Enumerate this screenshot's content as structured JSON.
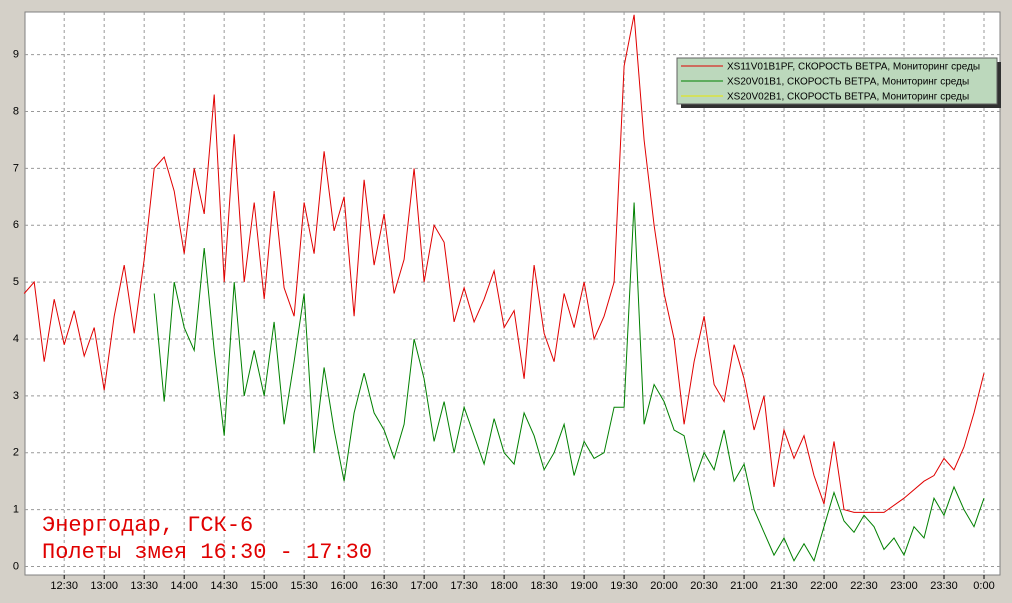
{
  "chart_data": {
    "type": "line",
    "annotations": [
      "Энергодар, ГСК-6",
      "Полеты змея 16:30 - 17:30"
    ],
    "xlim": [
      12.01,
      24.2
    ],
    "ylim": [
      -0.15,
      9.75
    ],
    "yticks": [
      0,
      1,
      2,
      3,
      4,
      5,
      6,
      7,
      8,
      9
    ],
    "xticks": [
      {
        "value": 12.5,
        "label": "12:30"
      },
      {
        "value": 13,
        "label": "13:00"
      },
      {
        "value": 13.5,
        "label": "13:30"
      },
      {
        "value": 14,
        "label": "14:00"
      },
      {
        "value": 14.5,
        "label": "14:30"
      },
      {
        "value": 15,
        "label": "15:00"
      },
      {
        "value": 15.5,
        "label": "15:30"
      },
      {
        "value": 16,
        "label": "16:00"
      },
      {
        "value": 16.5,
        "label": "16:30"
      },
      {
        "value": 17,
        "label": "17:00"
      },
      {
        "value": 17.5,
        "label": "17:30"
      },
      {
        "value": 18,
        "label": "18:00"
      },
      {
        "value": 18.5,
        "label": "18:30"
      },
      {
        "value": 19,
        "label": "19:00"
      },
      {
        "value": 19.5,
        "label": "19:30"
      },
      {
        "value": 20,
        "label": "20:00"
      },
      {
        "value": 20.5,
        "label": "20:30"
      },
      {
        "value": 21,
        "label": "21:00"
      },
      {
        "value": 21.5,
        "label": "21:30"
      },
      {
        "value": 22,
        "label": "22:00"
      },
      {
        "value": 22.5,
        "label": "22:30"
      },
      {
        "value": 23,
        "label": "23:00"
      },
      {
        "value": 23.5,
        "label": "23:30"
      },
      {
        "value": 24,
        "label": "0:00"
      }
    ],
    "grid": true,
    "legend": "upper right",
    "series": [
      {
        "name": "XS11V01B1PF, СКОРОСТЬ ВЕТРА, Мониторинг среды",
        "color": "#e00000",
        "x": [
          12,
          12.125,
          12.25,
          12.375,
          12.5,
          12.625,
          12.75,
          12.875,
          13,
          13.125,
          13.25,
          13.375,
          13.5,
          13.625,
          13.75,
          13.875,
          14,
          14.125,
          14.25,
          14.375,
          14.5,
          14.625,
          14.75,
          14.875,
          15,
          15.125,
          15.25,
          15.375,
          15.5,
          15.625,
          15.75,
          15.875,
          16,
          16.125,
          16.25,
          16.375,
          16.5,
          16.625,
          16.75,
          16.875,
          17,
          17.125,
          17.25,
          17.375,
          17.5,
          17.625,
          17.75,
          17.875,
          18,
          18.125,
          18.25,
          18.375,
          18.5,
          18.625,
          18.75,
          18.875,
          19,
          19.125,
          19.25,
          19.375,
          19.5,
          19.625,
          19.75,
          19.875,
          20,
          20.125,
          20.25,
          20.375,
          20.5,
          20.625,
          20.75,
          20.875,
          21,
          21.125,
          21.25,
          21.375,
          21.5,
          21.625,
          21.75,
          21.875,
          22,
          22.125,
          22.25,
          22.375,
          22.5,
          22.625,
          22.75,
          23,
          23.25,
          23.375,
          23.5,
          23.625,
          23.75,
          23.875,
          24
        ],
        "values": [
          4.8,
          5.0,
          3.6,
          4.7,
          3.9,
          4.5,
          3.7,
          4.2,
          3.1,
          4.4,
          5.3,
          4.1,
          5.4,
          7.0,
          7.2,
          6.6,
          5.5,
          7.0,
          6.2,
          8.3,
          5.0,
          7.6,
          5.0,
          6.4,
          4.7,
          6.6,
          4.9,
          4.4,
          6.4,
          5.5,
          7.3,
          5.9,
          6.5,
          4.4,
          6.8,
          5.3,
          6.2,
          4.8,
          5.4,
          7.0,
          5.0,
          6.0,
          5.7,
          4.3,
          4.9,
          4.3,
          4.7,
          5.2,
          4.2,
          4.5,
          3.3,
          5.3,
          4.1,
          3.6,
          4.8,
          4.2,
          5.0,
          4.0,
          4.4,
          5.0,
          8.8,
          9.7,
          7.5,
          6.0,
          4.8,
          4.0,
          2.5,
          3.6,
          4.4,
          3.2,
          2.9,
          3.9,
          3.3,
          2.4,
          3.0,
          1.4,
          2.4,
          1.9,
          2.3,
          1.6,
          1.1,
          2.2,
          1.0,
          0.95,
          0.95,
          0.95,
          0.95,
          1.2,
          1.5,
          1.6,
          1.9,
          1.7,
          2.1,
          2.7,
          3.4
        ]
      },
      {
        "name": "XS20V01B1, СКОРОСТЬ ВЕТРА, Мониторинг среды",
        "color": "#008000",
        "x": [
          13.625,
          13.75,
          13.875,
          14,
          14.125,
          14.25,
          14.375,
          14.5,
          14.625,
          14.75,
          14.875,
          15,
          15.125,
          15.25,
          15.375,
          15.5,
          15.625,
          15.75,
          15.875,
          16,
          16.125,
          16.25,
          16.375,
          16.5,
          16.625,
          16.75,
          16.875,
          17,
          17.125,
          17.25,
          17.375,
          17.5,
          17.625,
          17.75,
          17.875,
          18,
          18.125,
          18.25,
          18.375,
          18.5,
          18.625,
          18.75,
          18.875,
          19,
          19.125,
          19.25,
          19.375,
          19.5,
          19.625,
          19.75,
          19.875,
          20,
          20.125,
          20.25,
          20.375,
          20.5,
          20.625,
          20.75,
          20.875,
          21,
          21.125,
          21.25,
          21.375,
          21.5,
          21.625,
          21.75,
          21.875,
          22,
          22.125,
          22.25,
          22.375,
          22.5,
          22.625,
          22.75,
          22.875,
          23,
          23.125,
          23.25,
          23.375,
          23.5,
          23.625,
          23.75,
          23.875,
          24
        ],
        "values": [
          4.8,
          2.9,
          5.0,
          4.2,
          3.8,
          5.6,
          3.8,
          2.3,
          5.0,
          3.0,
          3.8,
          3.0,
          4.3,
          2.5,
          3.6,
          4.8,
          2.0,
          3.5,
          2.4,
          1.5,
          2.7,
          3.4,
          2.7,
          2.4,
          1.9,
          2.5,
          4.0,
          3.3,
          2.2,
          2.9,
          2.0,
          2.8,
          2.3,
          1.8,
          2.6,
          2.0,
          1.8,
          2.7,
          2.3,
          1.7,
          2.0,
          2.5,
          1.6,
          2.2,
          1.9,
          2.0,
          2.8,
          2.8,
          6.4,
          2.5,
          3.2,
          2.9,
          2.4,
          2.3,
          1.5,
          2.0,
          1.7,
          2.4,
          1.5,
          1.8,
          1.0,
          0.6,
          0.2,
          0.5,
          0.1,
          0.4,
          0.1,
          0.7,
          1.3,
          0.8,
          0.6,
          0.9,
          0.7,
          0.3,
          0.5,
          0.2,
          0.7,
          0.5,
          1.2,
          0.9,
          1.4,
          1.0,
          0.7,
          1.2
        ]
      },
      {
        "name": "XS20V02B1, СКОРОСТЬ ВЕТРА, Мониторинг среды",
        "color": "#e8e800",
        "x": [],
        "values": []
      }
    ]
  }
}
